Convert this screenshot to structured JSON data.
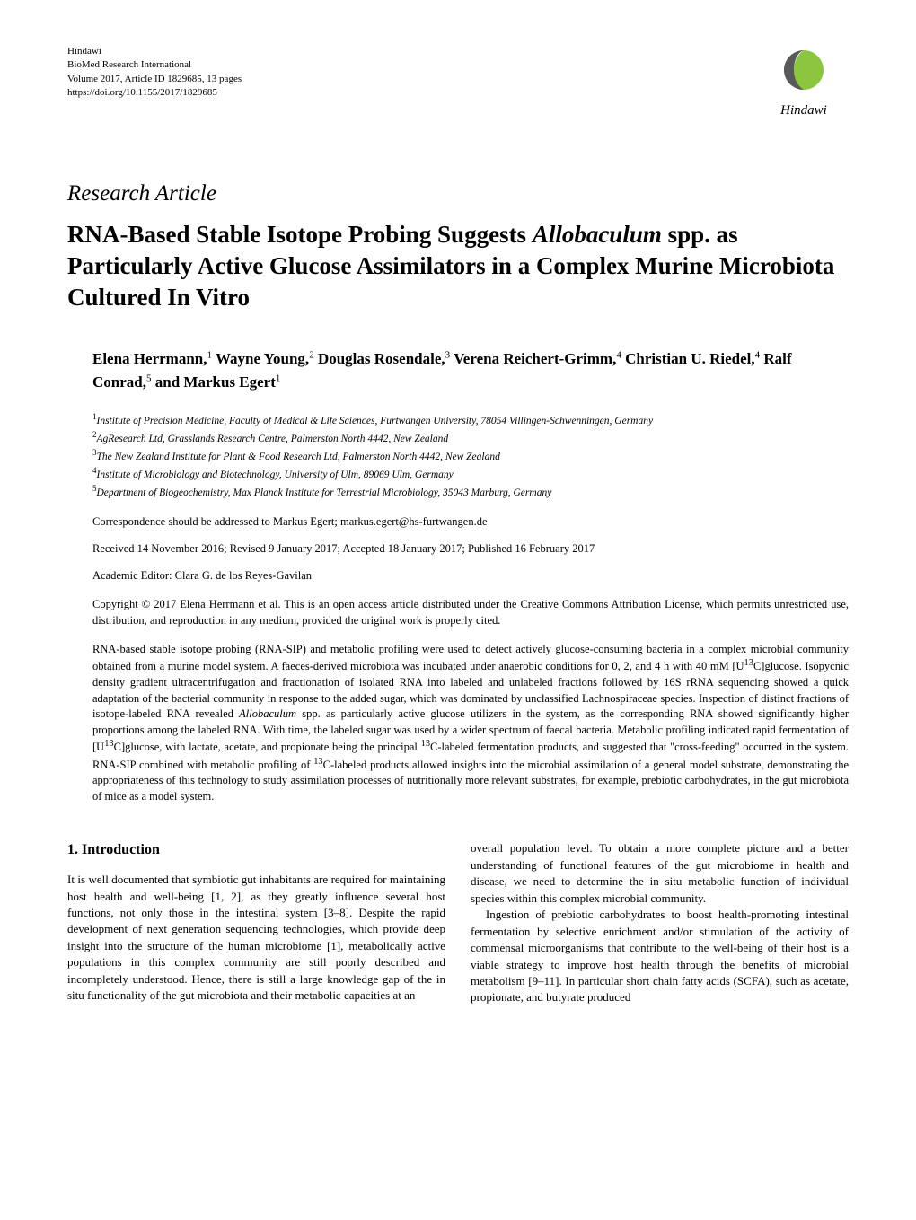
{
  "journal": {
    "publisher": "Hindawi",
    "name": "BioMed Research International",
    "volume": "Volume 2017, Article ID 1829685, 13 pages",
    "doi": "https://doi.org/10.1155/2017/1829685"
  },
  "logo": {
    "text": "Hindawi",
    "mark_color_green": "#8cc63f",
    "mark_color_gray": "#58595b"
  },
  "article_type": "Research Article",
  "title_parts": {
    "pre": "RNA-Based Stable Isotope Probing Suggests ",
    "species": "Allobaculum",
    "post": " spp. as Particularly Active Glucose Assimilators in a Complex Murine Microbiota Cultured In Vitro"
  },
  "authors_html": "Elena Herrmann,<sup>1</sup> Wayne Young,<sup>2</sup> Douglas Rosendale,<sup>3</sup> Verena Reichert-Grimm,<sup>4</sup> Christian U. Riedel,<sup>4</sup> Ralf Conrad,<sup>5</sup> and Markus Egert<sup>1</sup>",
  "affiliations": [
    "Institute of Precision Medicine, Faculty of Medical & Life Sciences, Furtwangen University, 78054 Villingen-Schwenningen, Germany",
    "AgResearch Ltd, Grasslands Research Centre, Palmerston North 4442, New Zealand",
    "The New Zealand Institute for Plant & Food Research Ltd, Palmerston North 4442, New Zealand",
    "Institute of Microbiology and Biotechnology, University of Ulm, 89069 Ulm, Germany",
    "Department of Biogeochemistry, Max Planck Institute for Terrestrial Microbiology, 35043 Marburg, Germany"
  ],
  "correspondence": "Correspondence should be addressed to Markus Egert; markus.egert@hs-furtwangen.de",
  "dates": "Received 14 November 2016; Revised 9 January 2017; Accepted 18 January 2017; Published 16 February 2017",
  "editor": "Academic Editor: Clara G. de los Reyes-Gavilan",
  "copyright": "Copyright © 2017 Elena Herrmann et al. This is an open access article distributed under the Creative Commons Attribution License, which permits unrestricted use, distribution, and reproduction in any medium, provided the original work is properly cited.",
  "abstract_parts": {
    "p1": "RNA-based stable isotope probing (RNA-SIP) and metabolic profiling were used to detect actively glucose-consuming bacteria in a complex microbial community obtained from a murine model system. A faeces-derived microbiota was incubated under anaerobic conditions for 0, 2, and 4 h with 40 mM [U",
    "sup1": "13",
    "p2": "C]glucose. Isopycnic density gradient ultracentrifugation and fractionation of isolated RNA into labeled and unlabeled fractions followed by 16S rRNA sequencing showed a quick adaptation of the bacterial community in response to the added sugar, which was dominated by unclassified Lachnospiraceae species. Inspection of distinct fractions of isotope-labeled RNA revealed ",
    "species": "Allobaculum",
    "p3": " spp. as particularly active glucose utilizers in the system, as the corresponding RNA showed significantly higher proportions among the labeled RNA. With time, the labeled sugar was used by a wider spectrum of faecal bacteria. Metabolic profiling indicated rapid fermentation of [U",
    "sup2": "13",
    "p4": "C]glucose, with lactate, acetate, and propionate being the principal ",
    "sup3": "13",
    "p5": "C-labeled fermentation products, and suggested that \"cross-feeding\" occurred in the system. RNA-SIP combined with metabolic profiling of ",
    "sup4": "13",
    "p6": "C-labeled products allowed insights into the microbial assimilation of a general model substrate, demonstrating the appropriateness of this technology to study assimilation processes of nutritionally more relevant substrates, for example, prebiotic carbohydrates, in the gut microbiota of mice as a model system."
  },
  "section_heading": "1. Introduction",
  "body": {
    "col1_p1": "It is well documented that symbiotic gut inhabitants are required for maintaining host health and well-being [1, 2], as they greatly influence several host functions, not only those in the intestinal system [3–8]. Despite the rapid development of next generation sequencing technologies, which provide deep insight into the structure of the human microbiome [1], metabolically active populations in this complex community are still poorly described and incompletely understood. Hence, there is still a large knowledge gap of the in situ functionality of the gut microbiota and their metabolic capacities at an",
    "col2_p1": "overall population level. To obtain a more complete picture and a better understanding of functional features of the gut microbiome in health and disease, we need to determine the in situ metabolic function of individual species within this complex microbial community.",
    "col2_p2": "Ingestion of prebiotic carbohydrates to boost health-promoting intestinal fermentation by selective enrichment and/or stimulation of the activity of commensal microorganisms that contribute to the well-being of their host is a viable strategy to improve host health through the benefits of microbial metabolism [9–11]. In particular short chain fatty acids (SCFA), such as acetate, propionate, and butyrate produced"
  }
}
